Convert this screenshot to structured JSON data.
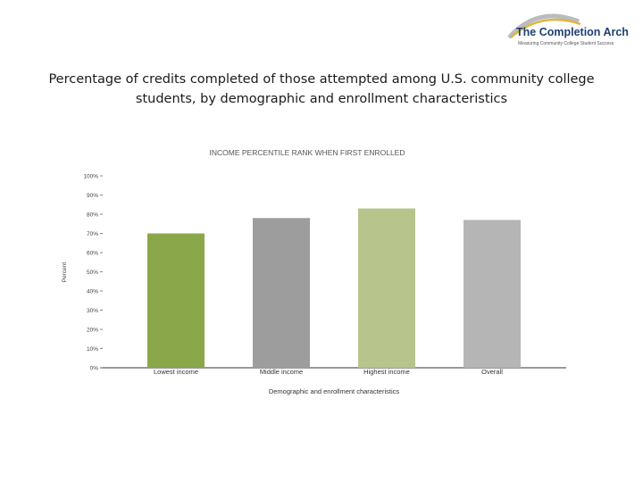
{
  "brand": {
    "name": "The Completion Arch",
    "tagline": "Measuring Community College Student Success",
    "colors": {
      "navy": "#1f3f73",
      "gold": "#e3b53a",
      "grey": "#b9bcbf"
    }
  },
  "page_title": "Percentage of credits completed of those attempted among U.S. community college students, by demographic and enrollment characteristics",
  "chart_data": {
    "type": "bar",
    "title": "INCOME PERCENTILE RANK WHEN FIRST ENROLLED",
    "xlabel": "Demographic and enrollment characteristics",
    "ylabel": "Percent",
    "ylim": [
      0,
      100
    ],
    "yticks": [
      0,
      10,
      20,
      30,
      40,
      50,
      60,
      70,
      80,
      90,
      100
    ],
    "ytick_labels": [
      "0%",
      "10%",
      "20%",
      "30%",
      "40%",
      "50%",
      "60%",
      "70%",
      "80%",
      "90%",
      "100%"
    ],
    "categories": [
      "Lowest income",
      "Middle income",
      "Highest income",
      "Overall"
    ],
    "values": [
      70,
      78,
      83,
      77
    ],
    "colors": [
      "#8aa84a",
      "#9d9d9d",
      "#b7c48c",
      "#b5b5b5"
    ],
    "grid": false,
    "legend": "none"
  }
}
